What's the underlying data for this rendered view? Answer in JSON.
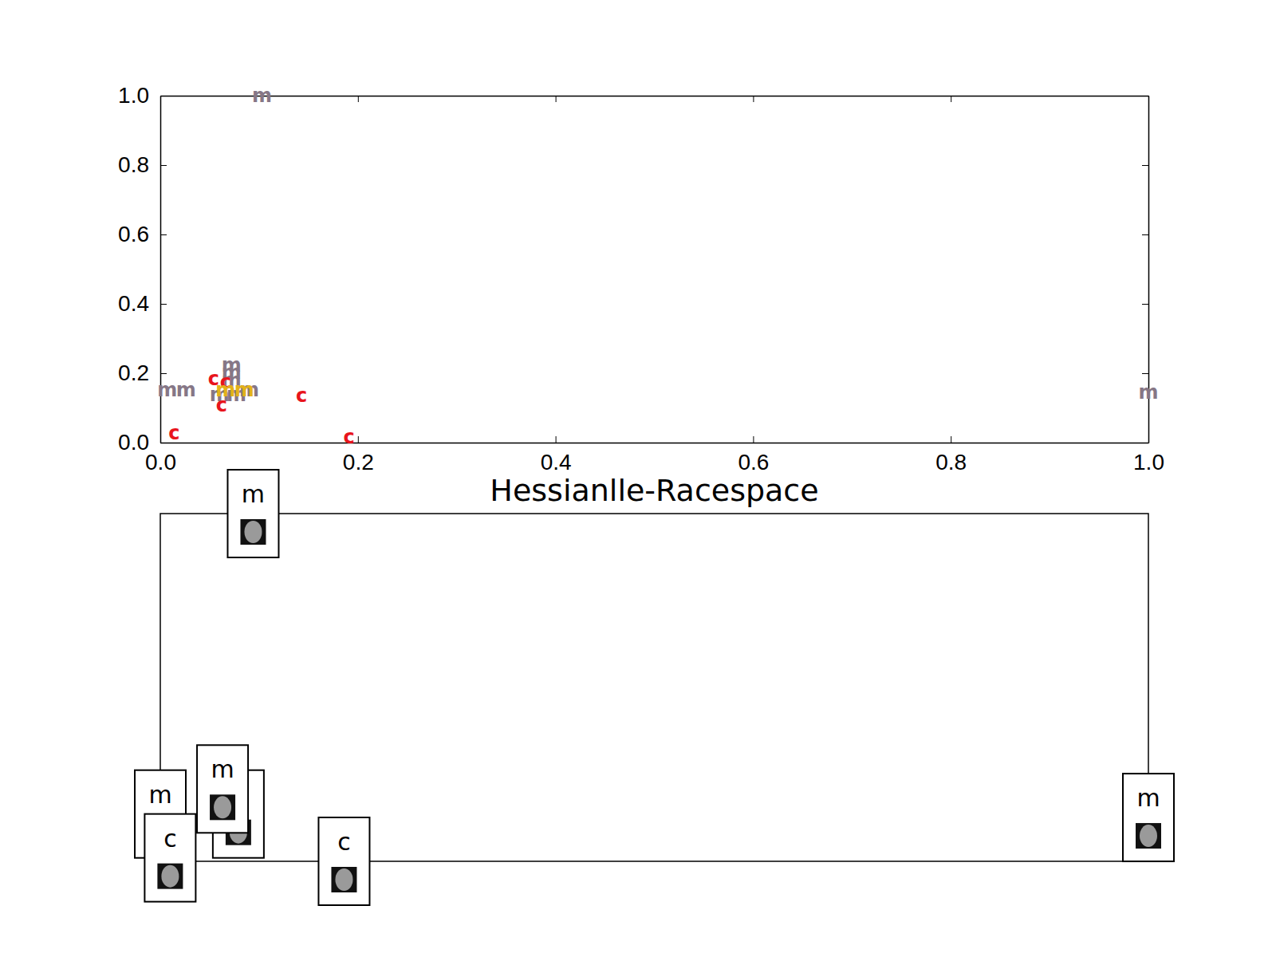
{
  "chart_data": [
    {
      "type": "scatter",
      "marker": "letter",
      "xlim": [
        0,
        1
      ],
      "ylim": [
        0,
        1
      ],
      "xticks": [
        {
          "value": 0,
          "label": "0.0"
        },
        {
          "value": 0.2,
          "label": "0.2"
        },
        {
          "value": 0.4,
          "label": "0.4"
        },
        {
          "value": 0.6,
          "label": "0.6"
        },
        {
          "value": 0.8,
          "label": "0.8"
        },
        {
          "value": 1,
          "label": "1.0"
        }
      ],
      "yticks": [
        {
          "value": 0,
          "label": "0.0"
        },
        {
          "value": 0.2,
          "label": "0.2"
        },
        {
          "value": 0.4,
          "label": "0.4"
        },
        {
          "value": 0.6,
          "label": "0.6"
        },
        {
          "value": 0.8,
          "label": "0.8"
        },
        {
          "value": 1,
          "label": "1.0"
        }
      ],
      "series": [
        {
          "name": "m",
          "color": "#867786",
          "x": [
            0.103,
            1.0,
            0.007,
            0.026,
            0.072,
            0.072,
            0.072,
            0.06,
            0.077,
            0.09
          ],
          "values": [
            1.0,
            0.145,
            0.152,
            0.152,
            0.223,
            0.202,
            0.18,
            0.138,
            0.138,
            0.152
          ]
        },
        {
          "name": "c",
          "color": "#e8141c",
          "x": [
            0.014,
            0.191,
            0.143,
            0.054,
            0.062,
            0.066
          ],
          "values": [
            0.028,
            0.016,
            0.136,
            0.185,
            0.108,
            0.174
          ]
        },
        {
          "name": "m",
          "color": "#e3b21a",
          "x": [
            0.066,
            0.085
          ],
          "values": [
            0.152,
            0.152
          ]
        }
      ]
    },
    {
      "type": "scatter",
      "marker": "thumbnail",
      "title": "Hessianlle-Racespace",
      "xlim": [
        0,
        1
      ],
      "ylim": [
        0,
        1
      ],
      "tick_labels": false,
      "series": [
        {
          "name": "m",
          "color": "#000000",
          "x": [
            0.094,
            0.0,
            0.079,
            0.063,
            1.0
          ],
          "values": [
            1.0,
            0.136,
            0.136,
            0.208,
            0.126
          ]
        },
        {
          "name": "c",
          "color": "#000000",
          "x": [
            0.01,
            0.186
          ],
          "values": [
            0.01,
            0.0
          ]
        }
      ]
    }
  ]
}
